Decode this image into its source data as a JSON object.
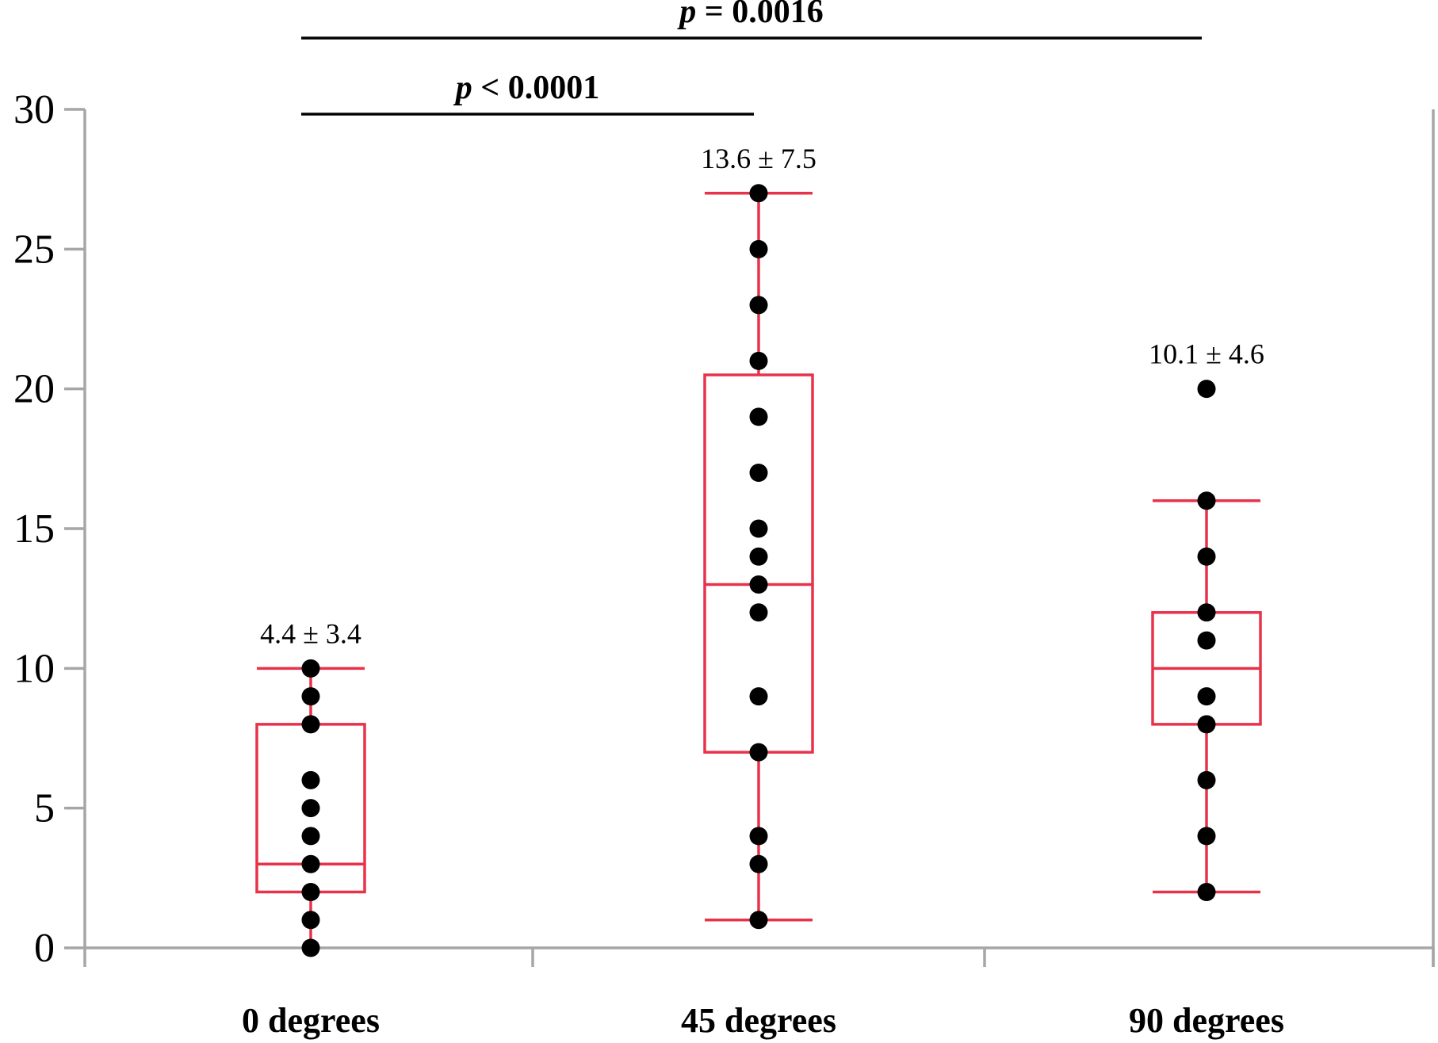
{
  "chart_data": {
    "type": "box",
    "xlabel": "",
    "ylabel": "",
    "ylim": [
      0,
      30
    ],
    "yticks": [
      "0",
      "5",
      "10",
      "15",
      "20",
      "25",
      "30"
    ],
    "grid": false,
    "categories": [
      "0 degrees",
      "45 degrees",
      "90 degrees"
    ],
    "groups": [
      {
        "category": "0 degrees",
        "summary_label": "4.4 ± 3.4",
        "whisker_low": 0,
        "q1": 2,
        "median": 3,
        "q3": 8,
        "whisker_high": 10,
        "points": [
          0,
          1,
          2,
          3,
          4,
          5,
          6,
          8,
          9,
          10
        ]
      },
      {
        "category": "45 degrees",
        "summary_label": "13.6 ± 7.5",
        "whisker_low": 1,
        "q1": 7,
        "median": 13,
        "q3": 20.5,
        "whisker_high": 27,
        "points": [
          1,
          3,
          4,
          7,
          9,
          12,
          13,
          14,
          15,
          17,
          19,
          21,
          23,
          25,
          27
        ]
      },
      {
        "category": "90 degrees",
        "summary_label": "10.1 ± 4.6",
        "whisker_low": 2,
        "q1": 8,
        "median": 10,
        "q3": 12,
        "whisker_high": 16,
        "points": [
          2,
          4,
          6,
          8,
          9,
          11,
          12,
          14,
          16,
          20
        ]
      }
    ],
    "significance": [
      {
        "from": "0 degrees",
        "to": "45 degrees",
        "p_symbol": "p",
        "p_text": " < 0.0001"
      },
      {
        "from": "0 degrees",
        "to": "90 degrees",
        "p_symbol": "p",
        "p_text": " = 0.0016"
      }
    ],
    "colors": {
      "box": "#e8324a",
      "points": "#000000",
      "axis": "#a6a6a6",
      "bracket": "#000000"
    }
  }
}
